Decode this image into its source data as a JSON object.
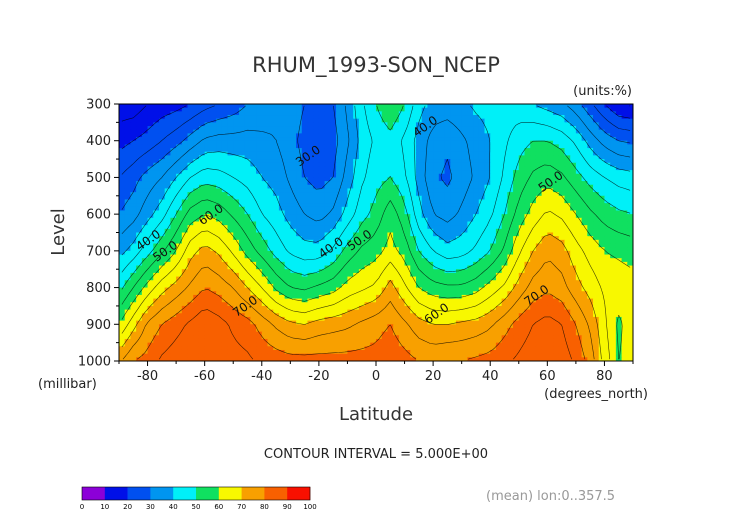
{
  "chart_data": {
    "type": "heatmap",
    "title": "RHUM_1993-SON_NCEP",
    "units_label": "(units:%)",
    "xlabel": "Latitude",
    "ylabel": "Level",
    "x_unit_label": "(degrees_north)",
    "y_unit_label": "(millibar)",
    "xlim": [
      -90,
      90
    ],
    "ylim": [
      300,
      1000
    ],
    "x_ticks": [
      -80,
      -60,
      -40,
      -20,
      0,
      20,
      40,
      60,
      80
    ],
    "x_tick_labels": [
      "-80",
      "-60",
      "-40",
      "-20",
      "0",
      "20",
      "40",
      "60",
      "80"
    ],
    "y_ticks": [
      300,
      400,
      500,
      600,
      700,
      800,
      900,
      1000
    ],
    "y_tick_labels": [
      "300",
      "400",
      "500",
      "600",
      "700",
      "800",
      "900",
      "1000"
    ],
    "contour_interval_text": "CONTOUR INTERVAL = 5.000E+00",
    "mean_text": "(mean) lon:0..357.5",
    "contour_labels": [
      {
        "text": "30.0",
        "lat": -23,
        "lev": 450
      },
      {
        "text": "40.0",
        "lat": 18,
        "lev": 370
      },
      {
        "text": "50.0",
        "lat": 62,
        "lev": 520
      },
      {
        "text": "60.0",
        "lat": -57,
        "lev": 610
      },
      {
        "text": "40.0",
        "lat": -79,
        "lev": 680
      },
      {
        "text": "50.0",
        "lat": -73,
        "lev": 710
      },
      {
        "text": "40.0",
        "lat": -15,
        "lev": 700
      },
      {
        "text": "50.0",
        "lat": -5,
        "lev": 680
      },
      {
        "text": "70.0",
        "lat": -45,
        "lev": 860
      },
      {
        "text": "60.0",
        "lat": 22,
        "lev": 880
      },
      {
        "text": "70.0",
        "lat": 57,
        "lev": 830
      }
    ],
    "colorbar": {
      "ticks": [
        "0",
        "10",
        "20",
        "30",
        "40",
        "50",
        "60",
        "70",
        "80",
        "90",
        "100"
      ],
      "colors": [
        "#8c00d8",
        "#0010e8",
        "#0050f0",
        "#0095f0",
        "#00f0f8",
        "#10e060",
        "#f8f800",
        "#f8a000",
        "#f86000",
        "#f81000"
      ]
    },
    "series": [
      {
        "lat": -90,
        "rh": [
          12,
          18,
          25,
          30,
          38,
          48,
          60,
          74
        ]
      },
      {
        "lat": -85,
        "rh": [
          12,
          20,
          28,
          33,
          42,
          55,
          68,
          80
        ]
      },
      {
        "lat": -80,
        "rh": [
          15,
          22,
          32,
          38,
          48,
          62,
          76,
          82
        ]
      },
      {
        "lat": -75,
        "rh": [
          17,
          25,
          35,
          43,
          54,
          68,
          80,
          86
        ]
      },
      {
        "lat": -70,
        "rh": [
          18,
          28,
          40,
          50,
          60,
          72,
          83,
          88
        ]
      },
      {
        "lat": -65,
        "rh": [
          20,
          32,
          45,
          57,
          68,
          76,
          86,
          90
        ]
      },
      {
        "lat": -60,
        "rh": [
          23,
          36,
          48,
          60,
          72,
          80,
          89,
          90
        ]
      },
      {
        "lat": -55,
        "rh": [
          25,
          37,
          47,
          58,
          69,
          78,
          87,
          88
        ]
      },
      {
        "lat": -50,
        "rh": [
          27,
          37,
          45,
          54,
          64,
          75,
          84,
          87
        ]
      },
      {
        "lat": -45,
        "rh": [
          30,
          37,
          43,
          50,
          58,
          70,
          82,
          86
        ]
      },
      {
        "lat": -40,
        "rh": [
          32,
          36,
          40,
          45,
          53,
          65,
          78,
          84
        ]
      },
      {
        "lat": -35,
        "rh": [
          34,
          35,
          38,
          42,
          48,
          59,
          74,
          83
        ]
      },
      {
        "lat": -30,
        "rh": [
          33,
          32,
          34,
          38,
          44,
          55,
          71,
          82
        ]
      },
      {
        "lat": -25,
        "rh": [
          30,
          28,
          30,
          35,
          42,
          54,
          70,
          82
        ]
      },
      {
        "lat": -20,
        "rh": [
          28,
          26,
          28,
          33,
          42,
          56,
          72,
          82
        ]
      },
      {
        "lat": -15,
        "rh": [
          30,
          28,
          30,
          36,
          46,
          58,
          73,
          82
        ]
      },
      {
        "lat": -10,
        "rh": [
          36,
          34,
          37,
          42,
          52,
          62,
          74,
          82
        ]
      },
      {
        "lat": -5,
        "rh": [
          44,
          42,
          44,
          48,
          56,
          64,
          76,
          82
        ]
      },
      {
        "lat": 0,
        "rh": [
          50,
          46,
          48,
          52,
          58,
          66,
          78,
          82
        ]
      },
      {
        "lat": 5,
        "rh": [
          55,
          48,
          50,
          58,
          62,
          72,
          80,
          84
        ]
      },
      {
        "lat": 10,
        "rh": [
          50,
          44,
          46,
          52,
          58,
          66,
          76,
          82
        ]
      },
      {
        "lat": 15,
        "rh": [
          42,
          38,
          38,
          42,
          50,
          60,
          72,
          80
        ]
      },
      {
        "lat": 20,
        "rh": [
          38,
          33,
          31,
          35,
          45,
          57,
          70,
          79
        ]
      },
      {
        "lat": 25,
        "rh": [
          38,
          31,
          29,
          33,
          42,
          56,
          70,
          80
        ]
      },
      {
        "lat": 30,
        "rh": [
          39,
          34,
          32,
          36,
          43,
          56,
          71,
          80
        ]
      },
      {
        "lat": 35,
        "rh": [
          41,
          37,
          36,
          40,
          46,
          58,
          72,
          81
        ]
      },
      {
        "lat": 40,
        "rh": [
          42,
          40,
          40,
          44,
          50,
          62,
          74,
          82
        ]
      },
      {
        "lat": 45,
        "rh": [
          42,
          44,
          46,
          50,
          56,
          66,
          78,
          84
        ]
      },
      {
        "lat": 50,
        "rh": [
          42,
          48,
          52,
          57,
          64,
          72,
          82,
          86
        ]
      },
      {
        "lat": 55,
        "rh": [
          40,
          50,
          56,
          62,
          70,
          77,
          85,
          88
        ]
      },
      {
        "lat": 60,
        "rh": [
          38,
          50,
          58,
          66,
          74,
          79,
          87,
          89
        ]
      },
      {
        "lat": 65,
        "rh": [
          36,
          48,
          56,
          64,
          72,
          77,
          85,
          88
        ]
      },
      {
        "lat": 70,
        "rh": [
          32,
          44,
          52,
          60,
          67,
          72,
          80,
          84
        ]
      },
      {
        "lat": 75,
        "rh": [
          26,
          38,
          48,
          56,
          63,
          68,
          74,
          78
        ]
      },
      {
        "lat": 80,
        "rh": [
          20,
          33,
          45,
          53,
          60,
          64,
          66,
          68
        ]
      },
      {
        "lat": 85,
        "rh": [
          15,
          30,
          43,
          51,
          59,
          63,
          59,
          60
        ]
      },
      {
        "lat": 90,
        "rh": [
          14,
          29,
          42,
          50,
          58,
          62,
          63,
          62
        ]
      }
    ]
  }
}
